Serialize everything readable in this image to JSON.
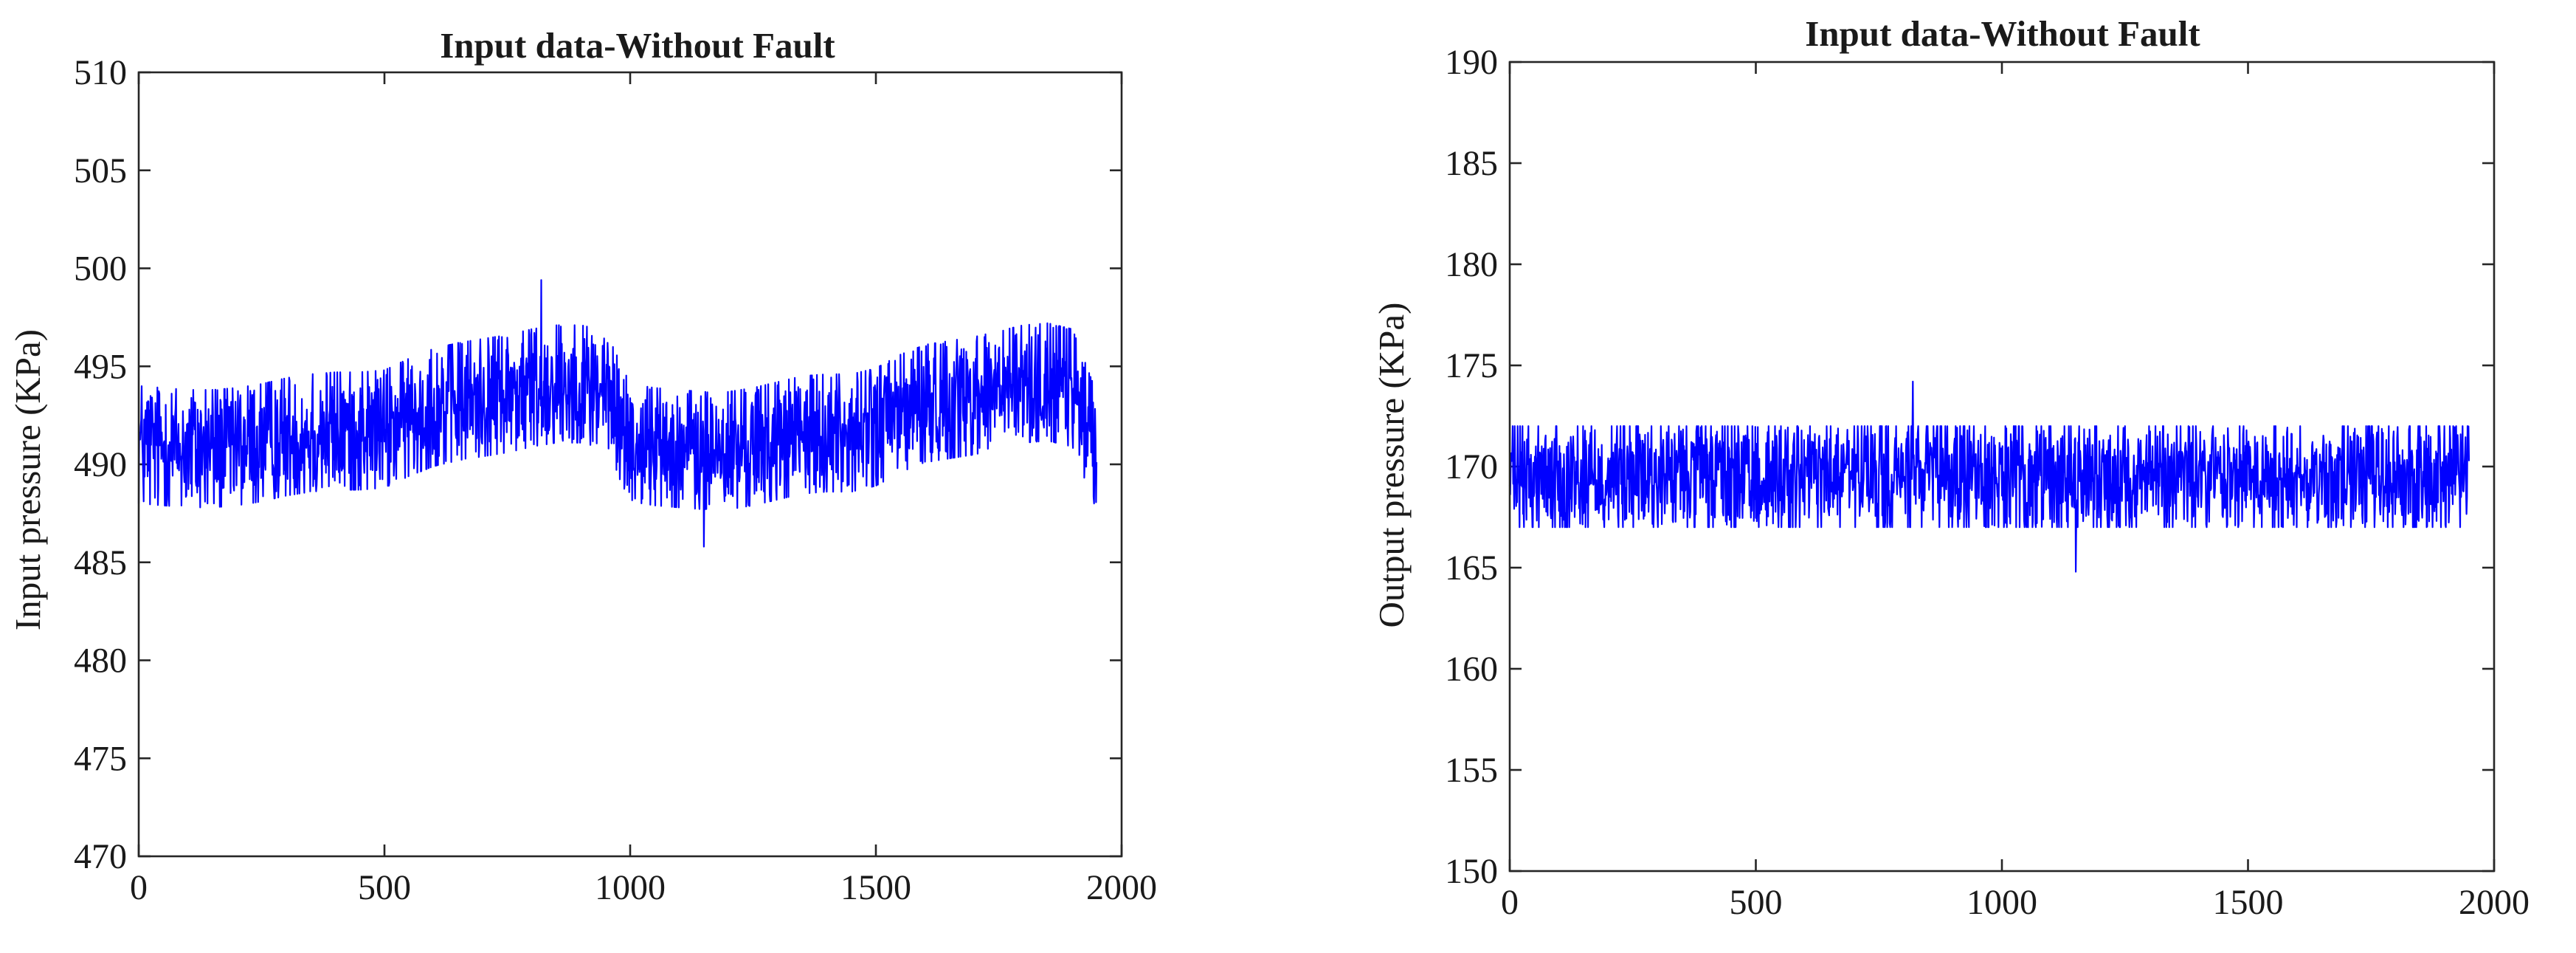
{
  "chart_data": [
    {
      "type": "line",
      "title": "Input data-Without Fault",
      "xlabel": "",
      "ylabel": "Input pressure (KPa)",
      "xlim": [
        0,
        2000
      ],
      "ylim": [
        470,
        510
      ],
      "xticks": [
        "0",
        "500",
        "1000",
        "1500",
        "2000"
      ],
      "yticks": [
        "470",
        "475",
        "480",
        "485",
        "490",
        "495",
        "500",
        "505",
        "510"
      ],
      "grid": false,
      "legend": "none",
      "color": "#0000ff",
      "n_points": 1950,
      "series": [
        {
          "x": [
            0,
            50,
            100,
            150,
            200,
            250,
            300,
            350,
            400,
            450,
            500,
            550,
            600,
            650,
            700,
            750,
            800,
            850,
            900,
            950,
            1000,
            1050,
            1100,
            1150,
            1200,
            1250,
            1300,
            1350,
            1400,
            1450,
            1500,
            1550,
            1600,
            1650,
            1700,
            1750,
            1800,
            1850,
            1900,
            1950
          ],
          "values": [
            491.0,
            490.9,
            490.8,
            490.8,
            490.9,
            491.1,
            491.4,
            491.6,
            491.7,
            491.7,
            491.8,
            492.4,
            492.9,
            493.2,
            493.4,
            493.6,
            493.9,
            494.1,
            494.1,
            493.8,
            491.1,
            490.9,
            490.8,
            490.7,
            490.7,
            490.9,
            491.2,
            491.5,
            491.6,
            491.6,
            491.9,
            492.6,
            493.1,
            493.3,
            493.5,
            493.8,
            494.1,
            494.2,
            493.9,
            490.6
          ],
          "noise_band": [
            -3.0,
            3.0
          ],
          "max_peak": 499.4,
          "min_dip": 485.8
        }
      ]
    },
    {
      "type": "line",
      "title": "Input data-Without Fault",
      "xlabel": "",
      "ylabel": "Output pressure (KPa)",
      "xlim": [
        0,
        2000
      ],
      "ylim": [
        150,
        190
      ],
      "xticks": [
        "0",
        "500",
        "1000",
        "1500",
        "2000"
      ],
      "yticks": [
        "150",
        "155",
        "160",
        "165",
        "170",
        "175",
        "180",
        "185",
        "190"
      ],
      "grid": false,
      "legend": "none",
      "color": "#0000ff",
      "n_points": 1950,
      "series": [
        {
          "x": [
            0,
            500,
            1000,
            1500,
            1950
          ],
          "values": [
            169.5,
            169.5,
            169.5,
            169.5,
            169.5
          ],
          "noise_band": [
            -2.5,
            2.5
          ],
          "max_peak": 174.2,
          "min_dip": 164.8
        }
      ]
    }
  ]
}
